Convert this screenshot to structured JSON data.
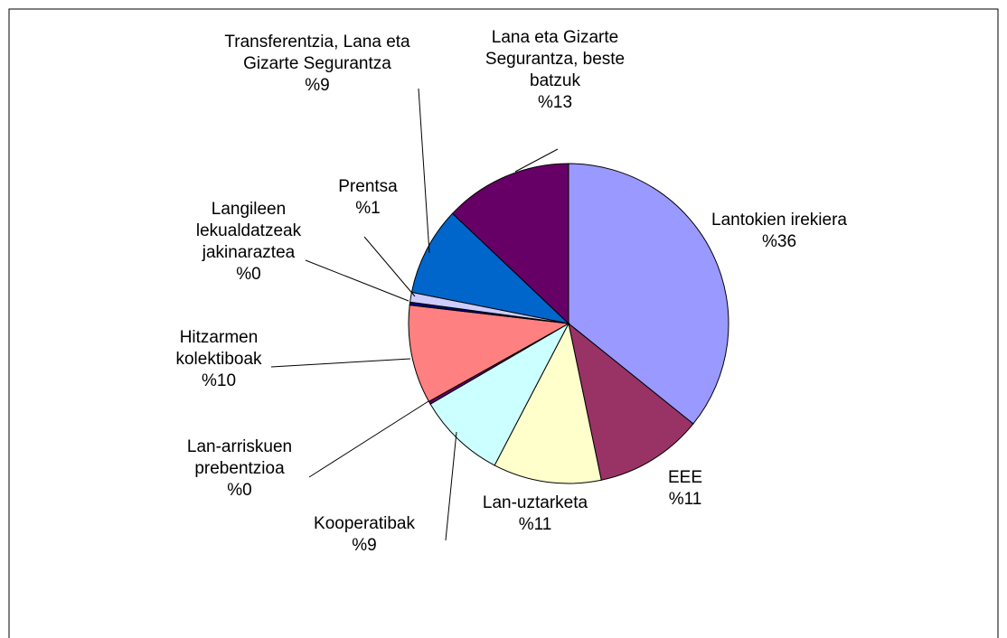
{
  "chart_data": {
    "type": "pie",
    "categories": [
      "Lantokien irekiera",
      "EEE",
      "Lan-uztarketa",
      "Kooperatibak",
      "Lan-arriskuen prebentzioa",
      "Hitzarmen kolektiboak",
      "Langileen lekualdatzeak jakinaraztea",
      "Prentsa",
      "Transferentzia, Lana eta Gizarte Segurantza",
      "Lana eta Gizarte Segurantza, beste batzuk"
    ],
    "values": [
      36,
      11,
      11,
      9,
      0.3,
      10,
      0.3,
      1,
      9,
      13
    ],
    "value_labels": [
      "%36",
      "%11",
      "%11",
      "%9",
      "%0",
      "%10",
      "%0",
      "%1",
      "%9",
      "%13"
    ],
    "colors": [
      "#9999ff",
      "#993366",
      "#ffffcc",
      "#ccffff",
      "#660066",
      "#ff8080",
      "#000080",
      "#ccccff",
      "#0066cc",
      "#660066"
    ]
  }
}
